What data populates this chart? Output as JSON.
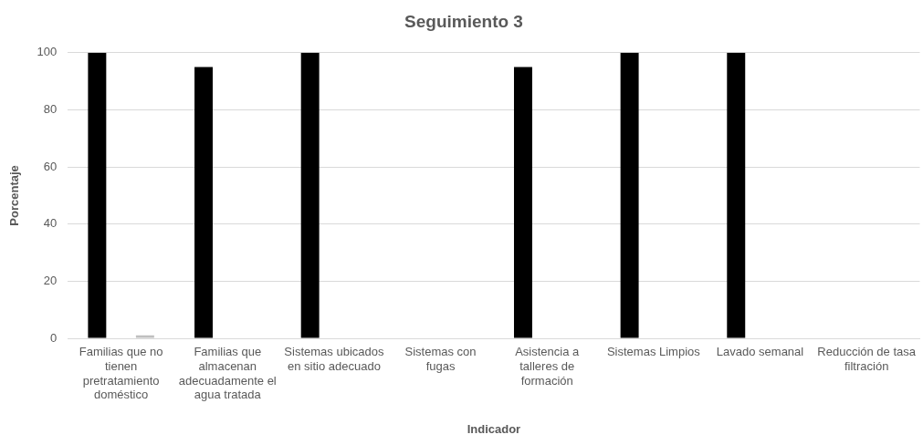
{
  "chart_data": {
    "type": "bar",
    "title": "Seguimiento 3",
    "xlabel": "Indicador",
    "ylabel": "Porcentaje",
    "categories": [
      "Familias que no tienen pretratamiento doméstico",
      "Familias que almacenan adecuadamente el agua tratada",
      "Sistemas ubicados en sitio adecuado",
      "Sistemas con fugas",
      "Asistencia a talleres de formación",
      "Sistemas Limpios",
      "Lavado semanal",
      "Reducción de tasa filtración"
    ],
    "series": [
      {
        "color": "#000000",
        "values": [
          100,
          95,
          100,
          0,
          95,
          100,
          100,
          0
        ]
      },
      {
        "color": "#bfbfbf",
        "values": [
          1,
          0,
          0,
          0,
          0,
          0,
          0,
          0
        ]
      }
    ],
    "ylim": [
      0,
      100
    ],
    "yticks": [
      0,
      20,
      40,
      60,
      80,
      100
    ],
    "grid": "y",
    "legend": false
  }
}
